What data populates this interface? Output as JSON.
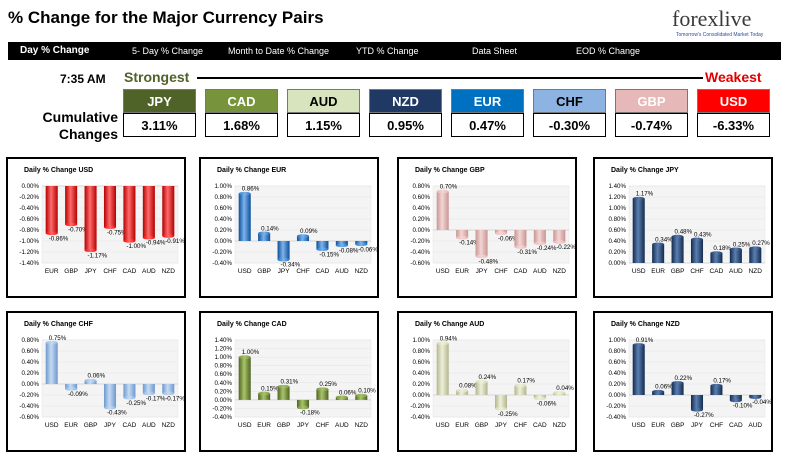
{
  "header": {
    "title": "% Change for the Major Currency Pairs",
    "logo_text": "forexlive",
    "logo_sub": "Tomorrow's Consolidated Market Today"
  },
  "nav": [
    {
      "label": "Day % Change",
      "active": true
    },
    {
      "label": "5- Day % Change",
      "active": false
    },
    {
      "label": "Month to Date % Change",
      "active": false
    },
    {
      "label": "YTD % Change",
      "active": false
    },
    {
      "label": "Data Sheet",
      "active": false
    },
    {
      "label": "EOD % Change",
      "active": false
    }
  ],
  "summary": {
    "time": "7:35 AM",
    "strongest_label": "Strongest",
    "weakest_label": "Weakest",
    "cumulative_label_1": "Cumulative",
    "cumulative_label_2": "Changes",
    "currencies": [
      {
        "name": "JPY",
        "value": "3.11%",
        "bg": "#4f6228",
        "fg": "#ffffff"
      },
      {
        "name": "CAD",
        "value": "1.68%",
        "bg": "#77933c",
        "fg": "#ffffff"
      },
      {
        "name": "AUD",
        "value": "1.15%",
        "bg": "#d7e4bd",
        "fg": "#000000"
      },
      {
        "name": "NZD",
        "value": "0.95%",
        "bg": "#1f3864",
        "fg": "#ffffff"
      },
      {
        "name": "EUR",
        "value": "0.47%",
        "bg": "#0070c0",
        "fg": "#ffffff"
      },
      {
        "name": "CHF",
        "value": "-0.30%",
        "bg": "#8db3e2",
        "fg": "#000000"
      },
      {
        "name": "GBP",
        "value": "-0.74%",
        "bg": "#e6b9b8",
        "fg": "#ffffff"
      },
      {
        "name": "USD",
        "value": "-6.33%",
        "bg": "#ff0000",
        "fg": "#ffffff"
      }
    ]
  },
  "colors": {
    "USD": {
      "light": "#ff6b6b",
      "dark": "#b30000",
      "mid": "#ff0000"
    },
    "EUR": {
      "light": "#7fb3ea",
      "dark": "#0b4f9c",
      "mid": "#1f73c9"
    },
    "GBP": {
      "light": "#f3d6d5",
      "dark": "#c89592",
      "mid": "#e6b9b8"
    },
    "JPY": {
      "light": "#5b7fb0",
      "dark": "#132a4e",
      "mid": "#1f3864"
    },
    "CHF": {
      "light": "#c6dbf3",
      "dark": "#6d98cc",
      "mid": "#8db3e2"
    },
    "CAD": {
      "light": "#a9c46b",
      "dark": "#4e6322",
      "mid": "#77933c"
    },
    "AUD": {
      "light": "#eef0dc",
      "dark": "#b3b58c",
      "mid": "#d6d8b4"
    },
    "NZD": {
      "light": "#5b7fb0",
      "dark": "#132a4e",
      "mid": "#1f3864"
    }
  },
  "chart_data": [
    {
      "type": "bar",
      "title": "Daily % Change USD",
      "color_key": "USD",
      "categories": [
        "EUR",
        "GBP",
        "JPY",
        "CHF",
        "CAD",
        "AUD",
        "NZD"
      ],
      "values": [
        -0.86,
        -0.7,
        -1.17,
        -0.75,
        -1.0,
        -0.94,
        -0.91
      ],
      "labels": [
        "-0.86%",
        "-0.70%",
        "-1.17%",
        "-0.75%",
        "-1.00%",
        "-0.94%",
        "-0.91%"
      ],
      "ylim": [
        -1.4,
        0.0
      ],
      "ticks": [
        0.0,
        -0.2,
        -0.4,
        -0.6,
        -0.8,
        -1.0,
        -1.2,
        -1.4
      ],
      "tick_labels": [
        "0.00%",
        "-0.20%",
        "-0.40%",
        "-0.60%",
        "-0.80%",
        "-1.00%",
        "-1.20%",
        "-1.40%"
      ]
    },
    {
      "type": "bar",
      "title": "Daily % Change EUR",
      "color_key": "EUR",
      "categories": [
        "USD",
        "GBP",
        "JPY",
        "CHF",
        "CAD",
        "AUD",
        "NZD"
      ],
      "values": [
        0.86,
        0.14,
        -0.34,
        0.09,
        -0.15,
        -0.08,
        -0.06
      ],
      "labels": [
        "0.86%",
        "0.14%",
        "-0.34%",
        "0.09%",
        "-0.15%",
        "-0.08%",
        "-0.06%"
      ],
      "ylim": [
        -0.4,
        1.0
      ],
      "ticks": [
        1.0,
        0.8,
        0.6,
        0.4,
        0.2,
        0.0,
        -0.2,
        -0.4
      ],
      "tick_labels": [
        "1.00%",
        "0.80%",
        "0.60%",
        "0.40%",
        "0.20%",
        "0.00%",
        "-0.20%",
        "-0.40%"
      ]
    },
    {
      "type": "bar",
      "title": "Daily % Change GBP",
      "color_key": "GBP",
      "categories": [
        "USD",
        "EUR",
        "JPY",
        "CHF",
        "CAD",
        "AUD",
        "NZD"
      ],
      "values": [
        0.7,
        -0.14,
        -0.48,
        -0.06,
        -0.31,
        -0.24,
        -0.22
      ],
      "labels": [
        "0.70%",
        "-0.14%",
        "-0.48%",
        "-0.06%",
        "-0.31%",
        "-0.24%",
        "-0.22%"
      ],
      "ylim": [
        -0.6,
        0.8
      ],
      "ticks": [
        0.8,
        0.6,
        0.4,
        0.2,
        0.0,
        -0.2,
        -0.4,
        -0.6
      ],
      "tick_labels": [
        "0.80%",
        "0.60%",
        "0.40%",
        "0.20%",
        "0.00%",
        "-0.20%",
        "-0.40%",
        "-0.60%"
      ]
    },
    {
      "type": "bar",
      "title": "Daily % Change JPY",
      "color_key": "JPY",
      "categories": [
        "USD",
        "EUR",
        "GBP",
        "CHF",
        "CAD",
        "AUD",
        "NZD"
      ],
      "values": [
        1.17,
        0.34,
        0.48,
        0.43,
        0.18,
        0.25,
        0.27
      ],
      "labels": [
        "1.17%",
        "0.34%",
        "0.48%",
        "0.43%",
        "0.18%",
        "0.25%",
        "0.27%"
      ],
      "ylim": [
        0.0,
        1.4
      ],
      "ticks": [
        1.4,
        1.2,
        1.0,
        0.8,
        0.6,
        0.4,
        0.2,
        0.0
      ],
      "tick_labels": [
        "1.40%",
        "1.20%",
        "1.00%",
        "0.80%",
        "0.60%",
        "0.40%",
        "0.20%",
        "0.00%"
      ]
    },
    {
      "type": "bar",
      "title": "Daily % Change CHF",
      "color_key": "CHF",
      "categories": [
        "USD",
        "EUR",
        "GBP",
        "JPY",
        "CAD",
        "AUD",
        "NZD"
      ],
      "values": [
        0.75,
        -0.09,
        0.06,
        -0.43,
        -0.25,
        -0.17,
        -0.17
      ],
      "labels": [
        "0.75%",
        "-0.09%",
        "0.06%",
        "-0.43%",
        "-0.25%",
        "-0.17%",
        "-0.17%"
      ],
      "ylim": [
        -0.6,
        0.8
      ],
      "ticks": [
        0.8,
        0.6,
        0.4,
        0.2,
        0.0,
        -0.2,
        -0.4,
        -0.6
      ],
      "tick_labels": [
        "0.80%",
        "0.60%",
        "0.40%",
        "0.20%",
        "0.00%",
        "-0.20%",
        "-0.40%",
        "-0.60%"
      ]
    },
    {
      "type": "bar",
      "title": "Daily % Change CAD",
      "color_key": "CAD",
      "categories": [
        "USD",
        "EUR",
        "GBP",
        "JPY",
        "CHF",
        "AUD",
        "NZD"
      ],
      "values": [
        1.0,
        0.15,
        0.31,
        -0.18,
        0.25,
        0.06,
        0.1
      ],
      "labels": [
        "1.00%",
        "0.15%",
        "0.31%",
        "-0.18%",
        "0.25%",
        "0.06%",
        "0.10%"
      ],
      "ylim": [
        -0.4,
        1.4
      ],
      "ticks": [
        1.4,
        1.2,
        1.0,
        0.8,
        0.6,
        0.4,
        0.2,
        0.0,
        -0.2,
        -0.4
      ],
      "tick_labels": [
        "1.40%",
        "1.20%",
        "1.00%",
        "0.80%",
        "0.60%",
        "0.40%",
        "0.20%",
        "0.00%",
        "-0.20%",
        "-0.40%"
      ]
    },
    {
      "type": "bar",
      "title": "Daily % Change AUD",
      "color_key": "AUD",
      "categories": [
        "USD",
        "EUR",
        "GBP",
        "JPY",
        "CHF",
        "CAD",
        "NZD"
      ],
      "values": [
        0.94,
        0.08,
        0.24,
        -0.25,
        0.17,
        -0.06,
        0.04
      ],
      "labels": [
        "0.94%",
        "0.08%",
        "0.24%",
        "-0.25%",
        "0.17%",
        "-0.06%",
        "0.04%"
      ],
      "ylim": [
        -0.4,
        1.0
      ],
      "ticks": [
        1.0,
        0.8,
        0.6,
        0.4,
        0.2,
        0.0,
        -0.2,
        -0.4
      ],
      "tick_labels": [
        "1.00%",
        "0.80%",
        "0.60%",
        "0.40%",
        "0.20%",
        "0.00%",
        "-0.20%",
        "-0.40%"
      ]
    },
    {
      "type": "bar",
      "title": "Daily % Change NZD",
      "color_key": "NZD",
      "categories": [
        "USD",
        "EUR",
        "GBP",
        "JPY",
        "CHF",
        "CAD",
        "AUD"
      ],
      "values": [
        0.91,
        0.06,
        0.22,
        -0.27,
        0.17,
        -0.1,
        -0.04
      ],
      "labels": [
        "0.91%",
        "0.06%",
        "0.22%",
        "-0.27%",
        "0.17%",
        "-0.10%",
        "-0.04%"
      ],
      "ylim": [
        -0.4,
        1.0
      ],
      "ticks": [
        1.0,
        0.8,
        0.6,
        0.4,
        0.2,
        0.0,
        -0.2,
        -0.4
      ],
      "tick_labels": [
        "1.00%",
        "0.80%",
        "0.60%",
        "0.40%",
        "0.20%",
        "0.00%",
        "-0.20%",
        "-0.40%"
      ]
    }
  ]
}
